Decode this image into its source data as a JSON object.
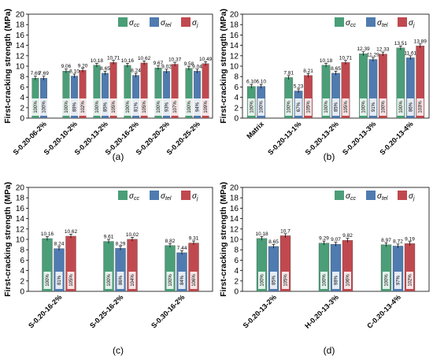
{
  "colors": {
    "cc": "#4a9e78",
    "tel": "#4f7bb0",
    "j": "#c0494f"
  },
  "legend_labels": [
    "σ",
    "σ",
    "σ"
  ],
  "legend_subscripts": [
    "cc",
    "tel",
    "j"
  ],
  "chart_data": [
    {
      "type": "bar",
      "panel_label": "(a)",
      "ylabel": "First-cracking strength (MPa)",
      "ylim": [
        0,
        20
      ],
      "yticks": [
        0,
        2,
        4,
        6,
        8,
        10,
        12,
        14,
        16,
        18,
        20
      ],
      "categories": [
        "S-0.20-06-2%",
        "S-0.20-10-2%",
        "S-0.20-13-2%",
        "S-0.20-16-2%",
        "S-0.20-20-2%",
        "S-0.20-25-2%"
      ],
      "series": [
        {
          "name": "σcc",
          "values": [
            7.69,
            9.06,
            10.18,
            10.16,
            9.67,
            9.58
          ],
          "value_labels": [
            "7.69",
            "9.06",
            "10.18",
            "10.16",
            "9.67",
            "9.58"
          ],
          "ratios": [
            "100%",
            "100%",
            "100%",
            "100%",
            "100%",
            "100%"
          ]
        },
        {
          "name": "σtel",
          "values": [
            7.69,
            8.1,
            8.65,
            8.24,
            9.02,
            9.04
          ],
          "value_labels": [
            "7.69",
            "8.10",
            "8.65",
            "8.24",
            "9.02",
            "9.04"
          ],
          "ratios": [
            "100%",
            "89%",
            "85%",
            "81%",
            "93%",
            "94%"
          ]
        },
        {
          "name": "σj",
          "values": [
            null,
            9.2,
            10.71,
            10.62,
            10.37,
            10.49
          ],
          "value_labels": [
            "",
            "9.20",
            "10.71",
            "10.62",
            "10.37",
            "10.49"
          ],
          "ratios": [
            "",
            "102%",
            "105%",
            "105%",
            "107%",
            "109%"
          ]
        }
      ]
    },
    {
      "type": "bar",
      "panel_label": "(b)",
      "ylabel": "First-cracking strength (MPa)",
      "ylim": [
        0,
        20
      ],
      "yticks": [
        0,
        2,
        4,
        6,
        8,
        10,
        12,
        14,
        16,
        18,
        20
      ],
      "categories": [
        "Matrix",
        "S-0.20-13-1%",
        "S-0.20-13-2%",
        "S-0.20-13-3%",
        "S-0.20-13-4%"
      ],
      "series": [
        {
          "name": "σcc",
          "values": [
            6.1,
            7.81,
            10.18,
            12.39,
            13.51
          ],
          "value_labels": [
            "6.10",
            "7.81",
            "10.18",
            "12.39",
            "13.51"
          ],
          "ratios": [
            "100%",
            "100%",
            "100%",
            "100%",
            "100%"
          ]
        },
        {
          "name": "σtel",
          "values": [
            6.1,
            5.23,
            8.65,
            11.29,
            11.61
          ],
          "value_labels": [
            "6.10",
            "5.23",
            "8.65",
            "11.29",
            "11.61"
          ],
          "ratios": [
            "100%",
            "67%",
            "85%",
            "91%",
            "86%"
          ]
        },
        {
          "name": "σj",
          "values": [
            null,
            8.21,
            10.71,
            12.33,
            13.89
          ],
          "value_labels": [
            "",
            "8.21",
            "10.71",
            "12.33",
            "13.89"
          ],
          "ratios": [
            "",
            "105%",
            "105%",
            "100%",
            "103%"
          ]
        }
      ]
    },
    {
      "type": "bar",
      "panel_label": "(c)",
      "ylabel": "First-cracking strength (MPa)",
      "ylim": [
        0,
        20
      ],
      "yticks": [
        0,
        2,
        4,
        6,
        8,
        10,
        12,
        14,
        16,
        18,
        20
      ],
      "categories": [
        "S-0.20-16-2%",
        "S-0.25-16-2%",
        "S-0.30-16-2%"
      ],
      "series": [
        {
          "name": "σcc",
          "values": [
            10.16,
            9.61,
            8.82
          ],
          "value_labels": [
            "10.16",
            "9.61",
            "8.82"
          ],
          "ratios": [
            "100%",
            "100%",
            "100%"
          ]
        },
        {
          "name": "σtel",
          "values": [
            8.24,
            8.29,
            7.44
          ],
          "value_labels": [
            "8.24",
            "8.29",
            "7.44"
          ],
          "ratios": [
            "81%",
            "86%",
            "84%"
          ]
        },
        {
          "name": "σj",
          "values": [
            10.62,
            10.02,
            9.31
          ],
          "value_labels": [
            "10.62",
            "10.02",
            "9.31"
          ],
          "ratios": [
            "105%",
            "104%",
            "106%"
          ]
        }
      ]
    },
    {
      "type": "bar",
      "panel_label": "(d)",
      "ylabel": "First-cracking strength (MPa)",
      "ylim": [
        0,
        20
      ],
      "yticks": [
        0,
        2,
        4,
        6,
        8,
        10,
        12,
        14,
        16,
        18,
        20
      ],
      "categories": [
        "S-0.20-13-2%",
        "H-0.20-13-3%",
        "C-0.20-13-4%"
      ],
      "series": [
        {
          "name": "σcc",
          "values": [
            10.18,
            9.29,
            8.97
          ],
          "value_labels": [
            "10.18",
            "9.29",
            "8.97"
          ],
          "ratios": [
            "100%",
            "100%",
            "100%"
          ]
        },
        {
          "name": "σtel",
          "values": [
            8.65,
            9.07,
            8.72
          ],
          "value_labels": [
            "8.65",
            "9.07",
            "8.72"
          ],
          "ratios": [
            "85%",
            "98%",
            "97%"
          ]
        },
        {
          "name": "σj",
          "values": [
            10.7,
            9.82,
            9.19
          ],
          "value_labels": [
            "10.7",
            "9.82",
            "9.19"
          ],
          "ratios": [
            "105%",
            "106%",
            "102%"
          ]
        }
      ]
    }
  ]
}
